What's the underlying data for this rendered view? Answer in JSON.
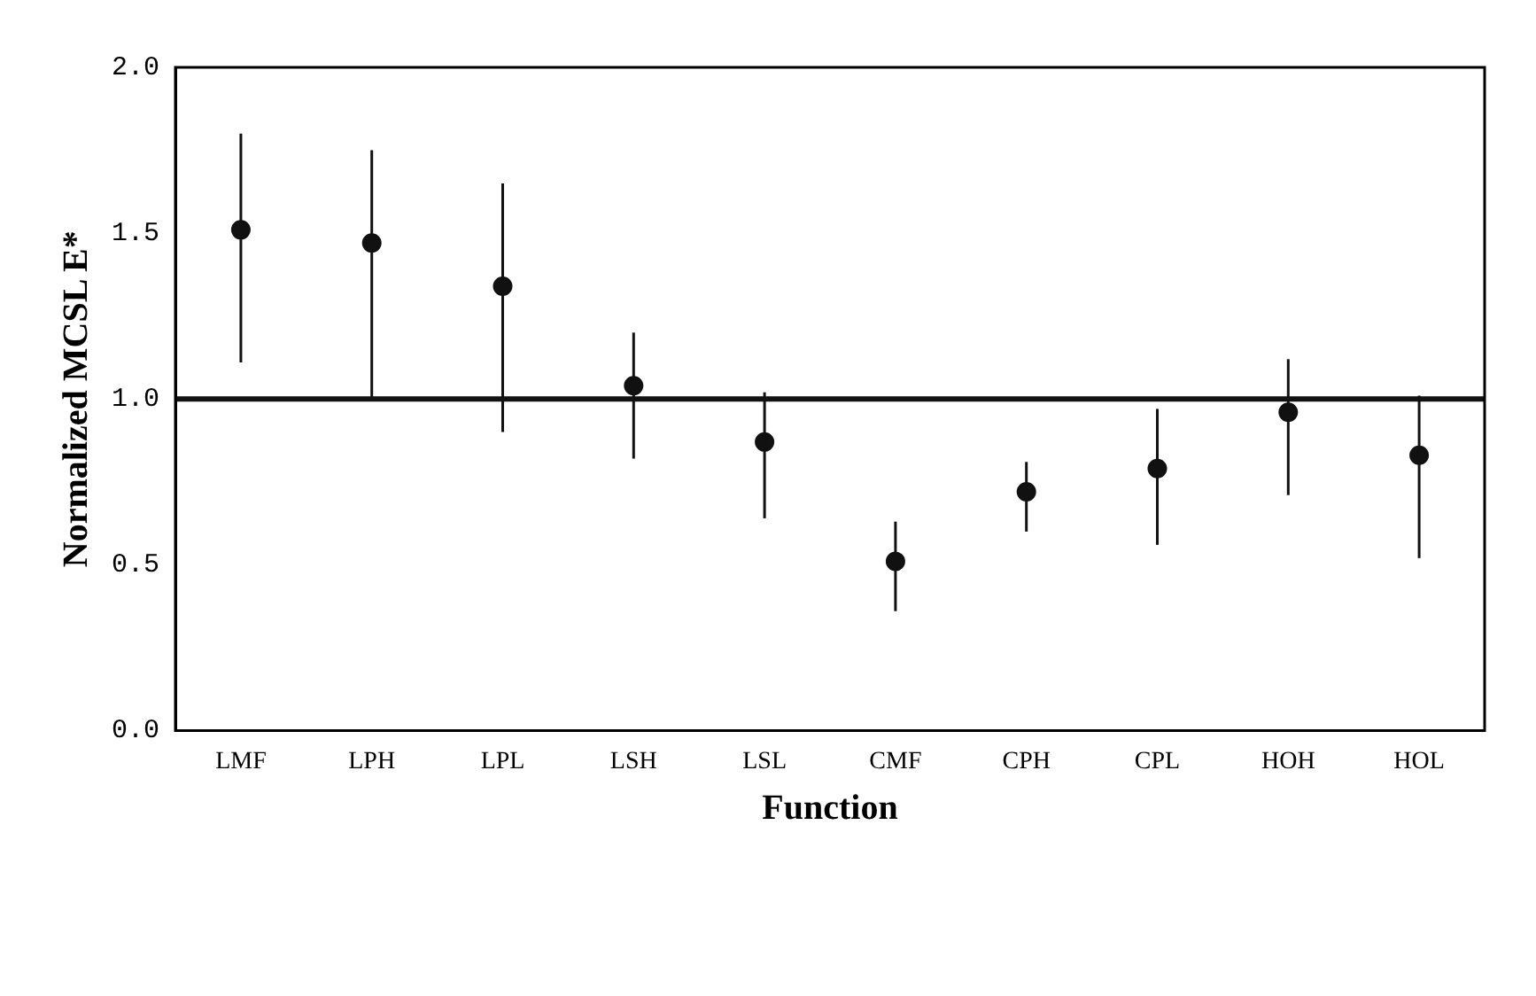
{
  "chart_data": {
    "type": "scatter",
    "xlabel": "Function",
    "ylabel": "Normalized MCSL E*",
    "categories": [
      "LMF",
      "LPH",
      "LPL",
      "LSH",
      "LSL",
      "CMF",
      "CPH",
      "CPL",
      "HOH",
      "HOL"
    ],
    "values": [
      1.51,
      1.47,
      1.34,
      1.04,
      0.87,
      0.51,
      0.72,
      0.79,
      0.96,
      0.83
    ],
    "errors": [
      [
        1.11,
        1.8
      ],
      [
        1.0,
        1.75
      ],
      [
        0.9,
        1.65
      ],
      [
        0.82,
        1.2
      ],
      [
        0.64,
        1.02
      ],
      [
        0.36,
        0.63
      ],
      [
        0.6,
        0.81
      ],
      [
        0.56,
        0.97
      ],
      [
        0.71,
        1.12
      ],
      [
        0.52,
        1.01
      ]
    ],
    "color": "#111111",
    "marker": "circle",
    "ylim": [
      0,
      2
    ],
    "yticks": [
      {
        "value": 0,
        "label": "0.0"
      },
      {
        "value": 0.5,
        "label": "0.5"
      },
      {
        "value": 1,
        "label": "1.0"
      },
      {
        "value": 1.5,
        "label": "1.5"
      },
      {
        "value": 2,
        "label": "2.0"
      }
    ],
    "ref_lines": [
      {
        "axis": "y",
        "value": 1,
        "color": "#111111"
      }
    ],
    "grid": false,
    "legend": false
  }
}
